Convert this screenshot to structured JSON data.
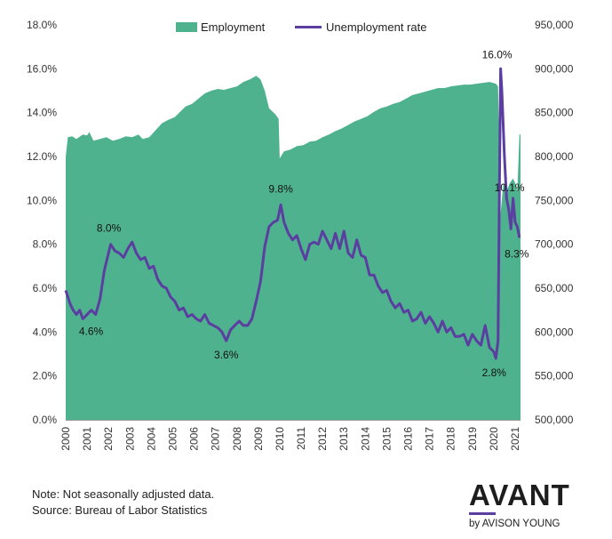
{
  "chart_data": {
    "type": "area+line",
    "legend": [
      "Employment",
      "Unemployment rate"
    ],
    "legend_placement": "top-center",
    "grid": false,
    "colors": {
      "employment": "#4fb28f",
      "unemployment": "#5b3fa0"
    },
    "y_left": {
      "ticks": [
        "0.0%",
        "2.0%",
        "4.0%",
        "6.0%",
        "8.0%",
        "10.0%",
        "12.0%",
        "14.0%",
        "16.0%",
        "18.0%"
      ],
      "range": [
        0,
        18
      ]
    },
    "y_right": {
      "ticks": [
        "500,000",
        "550,000",
        "600,000",
        "650,000",
        "700,000",
        "750,000",
        "800,000",
        "850,000",
        "900,000",
        "950,000"
      ],
      "range": [
        500000,
        950000
      ]
    },
    "x_ticks": [
      "2000",
      "2001",
      "2002",
      "2003",
      "2004",
      "2005",
      "2006",
      "2007",
      "2008",
      "2009",
      "2010",
      "2011",
      "2012",
      "2013",
      "2014",
      "2015",
      "2016",
      "2017",
      "2018",
      "2019",
      "2020",
      "2021"
    ],
    "x_range": [
      2000,
      2021.25
    ],
    "employment": [
      [
        2000.0,
        800000
      ],
      [
        2000.1,
        822000
      ],
      [
        2000.3,
        823000
      ],
      [
        2000.5,
        820000
      ],
      [
        2000.8,
        825000
      ],
      [
        2001.0,
        824000
      ],
      [
        2001.1,
        828000
      ],
      [
        2001.3,
        818000
      ],
      [
        2001.6,
        820000
      ],
      [
        2001.9,
        822000
      ],
      [
        2002.2,
        818000
      ],
      [
        2002.5,
        820000
      ],
      [
        2002.8,
        823000
      ],
      [
        2003.1,
        822000
      ],
      [
        2003.4,
        825000
      ],
      [
        2003.6,
        820000
      ],
      [
        2003.9,
        822000
      ],
      [
        2004.2,
        830000
      ],
      [
        2004.5,
        838000
      ],
      [
        2004.8,
        842000
      ],
      [
        2005.1,
        845000
      ],
      [
        2005.3,
        850000
      ],
      [
        2005.6,
        857000
      ],
      [
        2005.9,
        860000
      ],
      [
        2006.2,
        866000
      ],
      [
        2006.5,
        872000
      ],
      [
        2006.8,
        875000
      ],
      [
        2007.1,
        877000
      ],
      [
        2007.4,
        876000
      ],
      [
        2007.7,
        878000
      ],
      [
        2008.0,
        880000
      ],
      [
        2008.3,
        885000
      ],
      [
        2008.6,
        888000
      ],
      [
        2008.9,
        892000
      ],
      [
        2009.1,
        888000
      ],
      [
        2009.3,
        875000
      ],
      [
        2009.5,
        855000
      ],
      [
        2009.8,
        848000
      ],
      [
        2009.95,
        843000
      ],
      [
        2010.0,
        798000
      ],
      [
        2010.2,
        806000
      ],
      [
        2010.5,
        808000
      ],
      [
        2010.8,
        812000
      ],
      [
        2011.1,
        813000
      ],
      [
        2011.4,
        817000
      ],
      [
        2011.7,
        818000
      ],
      [
        2012.0,
        822000
      ],
      [
        2012.3,
        825000
      ],
      [
        2012.6,
        829000
      ],
      [
        2012.9,
        832000
      ],
      [
        2013.2,
        836000
      ],
      [
        2013.5,
        840000
      ],
      [
        2013.8,
        843000
      ],
      [
        2014.1,
        846000
      ],
      [
        2014.4,
        851000
      ],
      [
        2014.7,
        855000
      ],
      [
        2015.0,
        857000
      ],
      [
        2015.3,
        860000
      ],
      [
        2015.6,
        862000
      ],
      [
        2015.9,
        866000
      ],
      [
        2016.2,
        870000
      ],
      [
        2016.5,
        872000
      ],
      [
        2016.8,
        874000
      ],
      [
        2017.1,
        876000
      ],
      [
        2017.4,
        878000
      ],
      [
        2017.7,
        878000
      ],
      [
        2018.0,
        880000
      ],
      [
        2018.3,
        881000
      ],
      [
        2018.6,
        882000
      ],
      [
        2018.9,
        882000
      ],
      [
        2019.2,
        883000
      ],
      [
        2019.5,
        884000
      ],
      [
        2019.8,
        885000
      ],
      [
        2020.1,
        883000
      ],
      [
        2020.2,
        880000
      ],
      [
        2020.25,
        820000
      ],
      [
        2020.3,
        730000
      ],
      [
        2020.45,
        770000
      ],
      [
        2020.6,
        760000
      ],
      [
        2020.75,
        770000
      ],
      [
        2020.9,
        775000
      ],
      [
        2021.0,
        770000
      ],
      [
        2021.1,
        760000
      ],
      [
        2021.2,
        825000
      ],
      [
        2021.25,
        825000
      ]
    ],
    "unemployment_rate": [
      [
        2000.0,
        5.9
      ],
      [
        2000.1,
        5.6
      ],
      [
        2000.2,
        5.3
      ],
      [
        2000.35,
        5.0
      ],
      [
        2000.5,
        4.8
      ],
      [
        2000.65,
        5.0
      ],
      [
        2000.8,
        4.6
      ],
      [
        2001.0,
        4.8
      ],
      [
        2001.2,
        5.0
      ],
      [
        2001.4,
        4.8
      ],
      [
        2001.6,
        5.5
      ],
      [
        2001.8,
        6.8
      ],
      [
        2002.0,
        7.6
      ],
      [
        2002.1,
        8.0
      ],
      [
        2002.3,
        7.7
      ],
      [
        2002.5,
        7.6
      ],
      [
        2002.7,
        7.4
      ],
      [
        2002.9,
        7.8
      ],
      [
        2003.1,
        8.1
      ],
      [
        2003.3,
        7.6
      ],
      [
        2003.5,
        7.3
      ],
      [
        2003.7,
        7.4
      ],
      [
        2003.9,
        6.9
      ],
      [
        2004.1,
        7.0
      ],
      [
        2004.3,
        6.4
      ],
      [
        2004.5,
        6.1
      ],
      [
        2004.7,
        6.0
      ],
      [
        2004.9,
        5.6
      ],
      [
        2005.1,
        5.4
      ],
      [
        2005.3,
        5.0
      ],
      [
        2005.5,
        5.1
      ],
      [
        2005.7,
        4.7
      ],
      [
        2005.9,
        4.8
      ],
      [
        2006.1,
        4.6
      ],
      [
        2006.3,
        4.5
      ],
      [
        2006.5,
        4.8
      ],
      [
        2006.7,
        4.4
      ],
      [
        2006.9,
        4.3
      ],
      [
        2007.1,
        4.2
      ],
      [
        2007.3,
        4.0
      ],
      [
        2007.5,
        3.6
      ],
      [
        2007.7,
        4.1
      ],
      [
        2007.9,
        4.3
      ],
      [
        2008.1,
        4.5
      ],
      [
        2008.3,
        4.3
      ],
      [
        2008.5,
        4.3
      ],
      [
        2008.7,
        4.6
      ],
      [
        2008.9,
        5.4
      ],
      [
        2009.1,
        6.3
      ],
      [
        2009.3,
        7.9
      ],
      [
        2009.5,
        8.8
      ],
      [
        2009.7,
        9.0
      ],
      [
        2009.9,
        9.1
      ],
      [
        2010.05,
        9.8
      ],
      [
        2010.2,
        9.0
      ],
      [
        2010.4,
        8.5
      ],
      [
        2010.6,
        8.2
      ],
      [
        2010.8,
        8.4
      ],
      [
        2011.0,
        7.8
      ],
      [
        2011.2,
        7.3
      ],
      [
        2011.4,
        8.0
      ],
      [
        2011.6,
        8.1
      ],
      [
        2011.8,
        8.0
      ],
      [
        2012.0,
        8.6
      ],
      [
        2012.2,
        8.2
      ],
      [
        2012.4,
        7.8
      ],
      [
        2012.6,
        8.5
      ],
      [
        2012.8,
        7.8
      ],
      [
        2013.0,
        8.6
      ],
      [
        2013.2,
        7.6
      ],
      [
        2013.4,
        7.4
      ],
      [
        2013.6,
        8.2
      ],
      [
        2013.8,
        7.5
      ],
      [
        2014.0,
        7.4
      ],
      [
        2014.2,
        6.6
      ],
      [
        2014.4,
        6.6
      ],
      [
        2014.6,
        6.1
      ],
      [
        2014.8,
        5.8
      ],
      [
        2015.0,
        5.9
      ],
      [
        2015.2,
        5.4
      ],
      [
        2015.4,
        5.1
      ],
      [
        2015.6,
        5.3
      ],
      [
        2015.8,
        4.9
      ],
      [
        2016.0,
        5.0
      ],
      [
        2016.2,
        4.5
      ],
      [
        2016.4,
        4.6
      ],
      [
        2016.6,
        4.9
      ],
      [
        2016.8,
        4.4
      ],
      [
        2017.0,
        4.7
      ],
      [
        2017.2,
        4.4
      ],
      [
        2017.4,
        4.0
      ],
      [
        2017.6,
        4.5
      ],
      [
        2017.8,
        4.0
      ],
      [
        2018.0,
        4.2
      ],
      [
        2018.2,
        3.8
      ],
      [
        2018.4,
        3.8
      ],
      [
        2018.6,
        3.9
      ],
      [
        2018.8,
        3.4
      ],
      [
        2019.0,
        3.9
      ],
      [
        2019.2,
        3.6
      ],
      [
        2019.4,
        3.4
      ],
      [
        2019.6,
        4.3
      ],
      [
        2019.8,
        3.3
      ],
      [
        2020.0,
        3.1
      ],
      [
        2020.1,
        2.8
      ],
      [
        2020.2,
        3.6
      ],
      [
        2020.25,
        9.0
      ],
      [
        2020.32,
        16.0
      ],
      [
        2020.38,
        15.0
      ],
      [
        2020.5,
        12.0
      ],
      [
        2020.6,
        10.1
      ],
      [
        2020.7,
        9.6
      ],
      [
        2020.8,
        8.7
      ],
      [
        2020.9,
        10.1
      ],
      [
        2021.0,
        9.0
      ],
      [
        2021.1,
        8.8
      ],
      [
        2021.2,
        8.3
      ]
    ],
    "annotations": [
      {
        "x": 2000.85,
        "y": 4.6,
        "label": "4.6%"
      },
      {
        "x": 2002.1,
        "y": 8.0,
        "label": "8.0%"
      },
      {
        "x": 2007.5,
        "y": 3.6,
        "label": "3.6%"
      },
      {
        "x": 2010.05,
        "y": 9.8,
        "label": "9.8%"
      },
      {
        "x": 2020.1,
        "y": 2.8,
        "label": "2.8%"
      },
      {
        "x": 2020.32,
        "y": 16.0,
        "label": "16.0%"
      },
      {
        "x": 2020.9,
        "y": 10.1,
        "label": "10.1%"
      },
      {
        "x": 2021.2,
        "y": 8.3,
        "label": "8.3%"
      }
    ]
  },
  "footer": {
    "note": "Note: Not seasonally adjusted data.",
    "source": "Source: Bureau of Labor Statistics"
  },
  "brand": {
    "name": "AVANT",
    "sub": "by AVISON YOUNG"
  }
}
